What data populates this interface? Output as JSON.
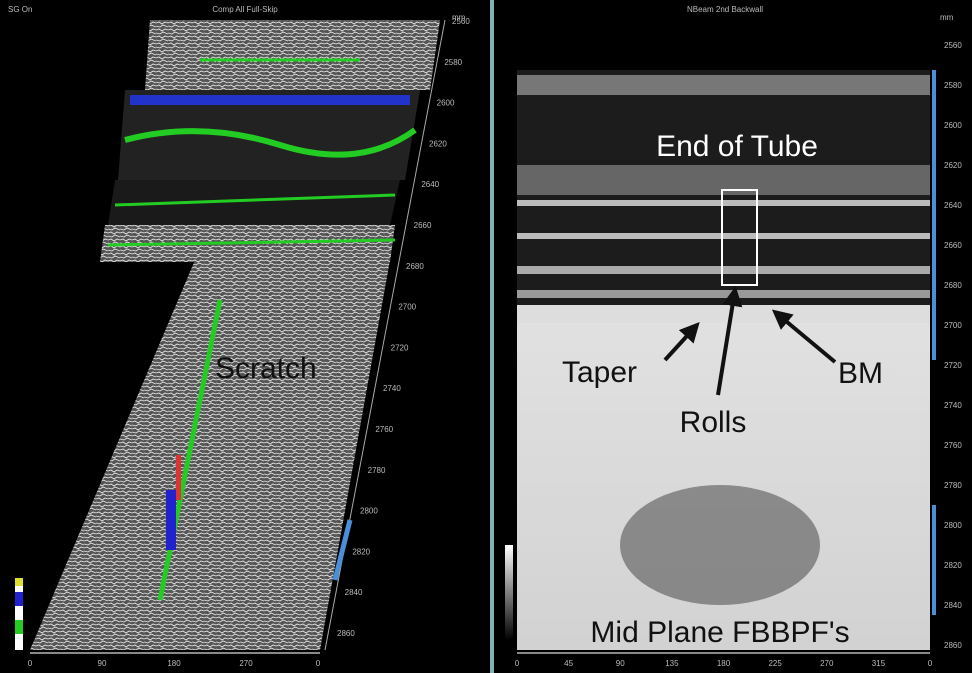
{
  "left_panel": {
    "title_left": "SG On",
    "title": "Comp All Full-Skip",
    "unit": "mm",
    "y_labels": [
      2560,
      2580,
      2600,
      2620,
      2640,
      2660,
      2680,
      2700,
      2720,
      2740,
      2760,
      2780,
      2800,
      2820,
      2840,
      2860
    ],
    "x_labels": [
      0,
      90,
      180,
      270,
      0
    ],
    "annotation": "Scratch"
  },
  "right_panel": {
    "title": "NBeam 2nd Backwall",
    "unit": "mm",
    "y_labels": [
      2560,
      2580,
      2600,
      2620,
      2640,
      2660,
      2680,
      2700,
      2720,
      2740,
      2760,
      2780,
      2800,
      2820,
      2840,
      2860
    ],
    "x_labels": [
      0,
      45,
      90,
      135,
      180,
      225,
      270,
      315,
      0
    ],
    "annotations": {
      "end_of_tube": "End of Tube",
      "taper": "Taper",
      "rolls": "Rolls",
      "bm": "BM",
      "mid_plane": "Mid Plane FBBPF's"
    }
  }
}
